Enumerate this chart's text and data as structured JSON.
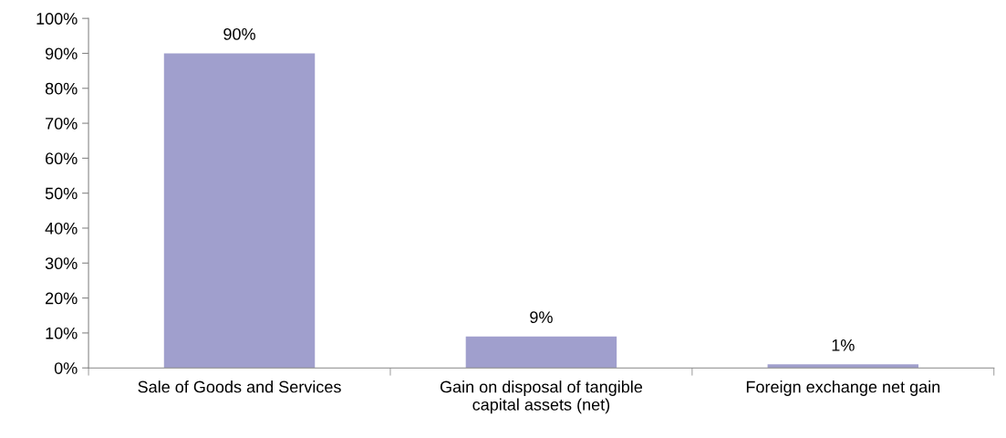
{
  "chart_data": {
    "type": "bar",
    "categories": [
      "Sale of Goods and Services",
      "Gain on disposal of tangible\ncapital assets (net)",
      "Foreign exchange net gain"
    ],
    "values": [
      90,
      9,
      1
    ],
    "value_labels": [
      "90%",
      "9%",
      "1%"
    ],
    "color": "#a09fcd",
    "ylim": [
      0,
      100
    ],
    "yticks": [
      {
        "value": 0,
        "label": "0%"
      },
      {
        "value": 10,
        "label": "10%"
      },
      {
        "value": 20,
        "label": "20%"
      },
      {
        "value": 30,
        "label": "30%"
      },
      {
        "value": 40,
        "label": "40%"
      },
      {
        "value": 50,
        "label": "50%"
      },
      {
        "value": 60,
        "label": "60%"
      },
      {
        "value": 70,
        "label": "70%"
      },
      {
        "value": 80,
        "label": "80%"
      },
      {
        "value": 90,
        "label": "90%"
      },
      {
        "value": 100,
        "label": "100%"
      }
    ],
    "grid": false,
    "legend": false
  }
}
